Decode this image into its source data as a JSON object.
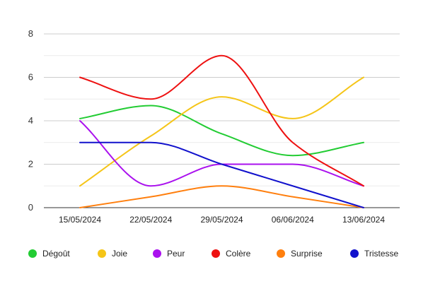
{
  "chart_data": {
    "type": "line",
    "title": "",
    "xlabel": "",
    "ylabel": "",
    "categories": [
      "15/05/2024",
      "22/05/2024",
      "29/05/2024",
      "06/06/2024",
      "13/06/2024"
    ],
    "ylim": [
      0,
      8
    ],
    "yticks": [
      0,
      2,
      4,
      6,
      8
    ],
    "grid": true,
    "legend_position": "bottom",
    "series": [
      {
        "name": "Dégoût",
        "color": "#22cc33",
        "values": [
          4.1,
          4.7,
          3.4,
          2.4,
          3.0
        ]
      },
      {
        "name": "Joie",
        "color": "#f5c518",
        "values": [
          1.0,
          3.3,
          5.1,
          4.1,
          6.0
        ]
      },
      {
        "name": "Peur",
        "color": "#aa11ee",
        "values": [
          4.0,
          1.0,
          2.0,
          2.0,
          1.0
        ]
      },
      {
        "name": "Colère",
        "color": "#ee1111",
        "values": [
          6.0,
          5.0,
          7.0,
          3.0,
          1.0
        ]
      },
      {
        "name": "Surprise",
        "color": "#ff7f0e",
        "values": [
          0.0,
          0.5,
          1.0,
          0.5,
          0.0
        ]
      },
      {
        "name": "Tristesse",
        "color": "#1111cc",
        "values": [
          3.0,
          3.0,
          2.0,
          1.0,
          0.0
        ]
      }
    ]
  }
}
